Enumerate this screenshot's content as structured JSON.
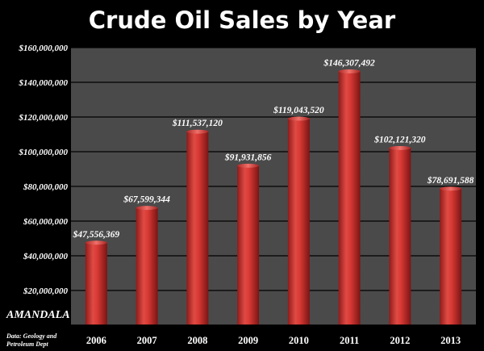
{
  "chart_data": {
    "type": "bar",
    "title": "Crude Oil Sales by Year",
    "categories": [
      "2006",
      "2007",
      "2008",
      "2009",
      "2010",
      "2011",
      "2012",
      "2013"
    ],
    "values": [
      47556369,
      67599344,
      111537120,
      91931856,
      119043520,
      146307492,
      102121320,
      78691588
    ],
    "value_labels": [
      "$47,556,369",
      "$67,599,344",
      "$111,537,120",
      "$91,931,856",
      "$119,043,520",
      "$146,307,492",
      "$102,121,320",
      "$78,691,588"
    ],
    "ylim": [
      0,
      160000000
    ],
    "yticks": [
      0,
      20000000,
      40000000,
      60000000,
      80000000,
      100000000,
      120000000,
      140000000,
      160000000
    ],
    "ytick_labels": [
      "",
      "$20,000,000",
      "$40,000,000",
      "$60,000,000",
      "$80,000,000",
      "$100,000,000",
      "$120,000,000",
      "$140,000,000",
      "$160,000,000"
    ],
    "grid": true,
    "bar_color": "#d93a36",
    "plot_background": "#4a4a4a",
    "gridline_color": "#000000"
  },
  "logo": {
    "text": "AMANDALA"
  },
  "source": {
    "line1": "Data: Geology and",
    "line2": "Petroleum Dept"
  }
}
